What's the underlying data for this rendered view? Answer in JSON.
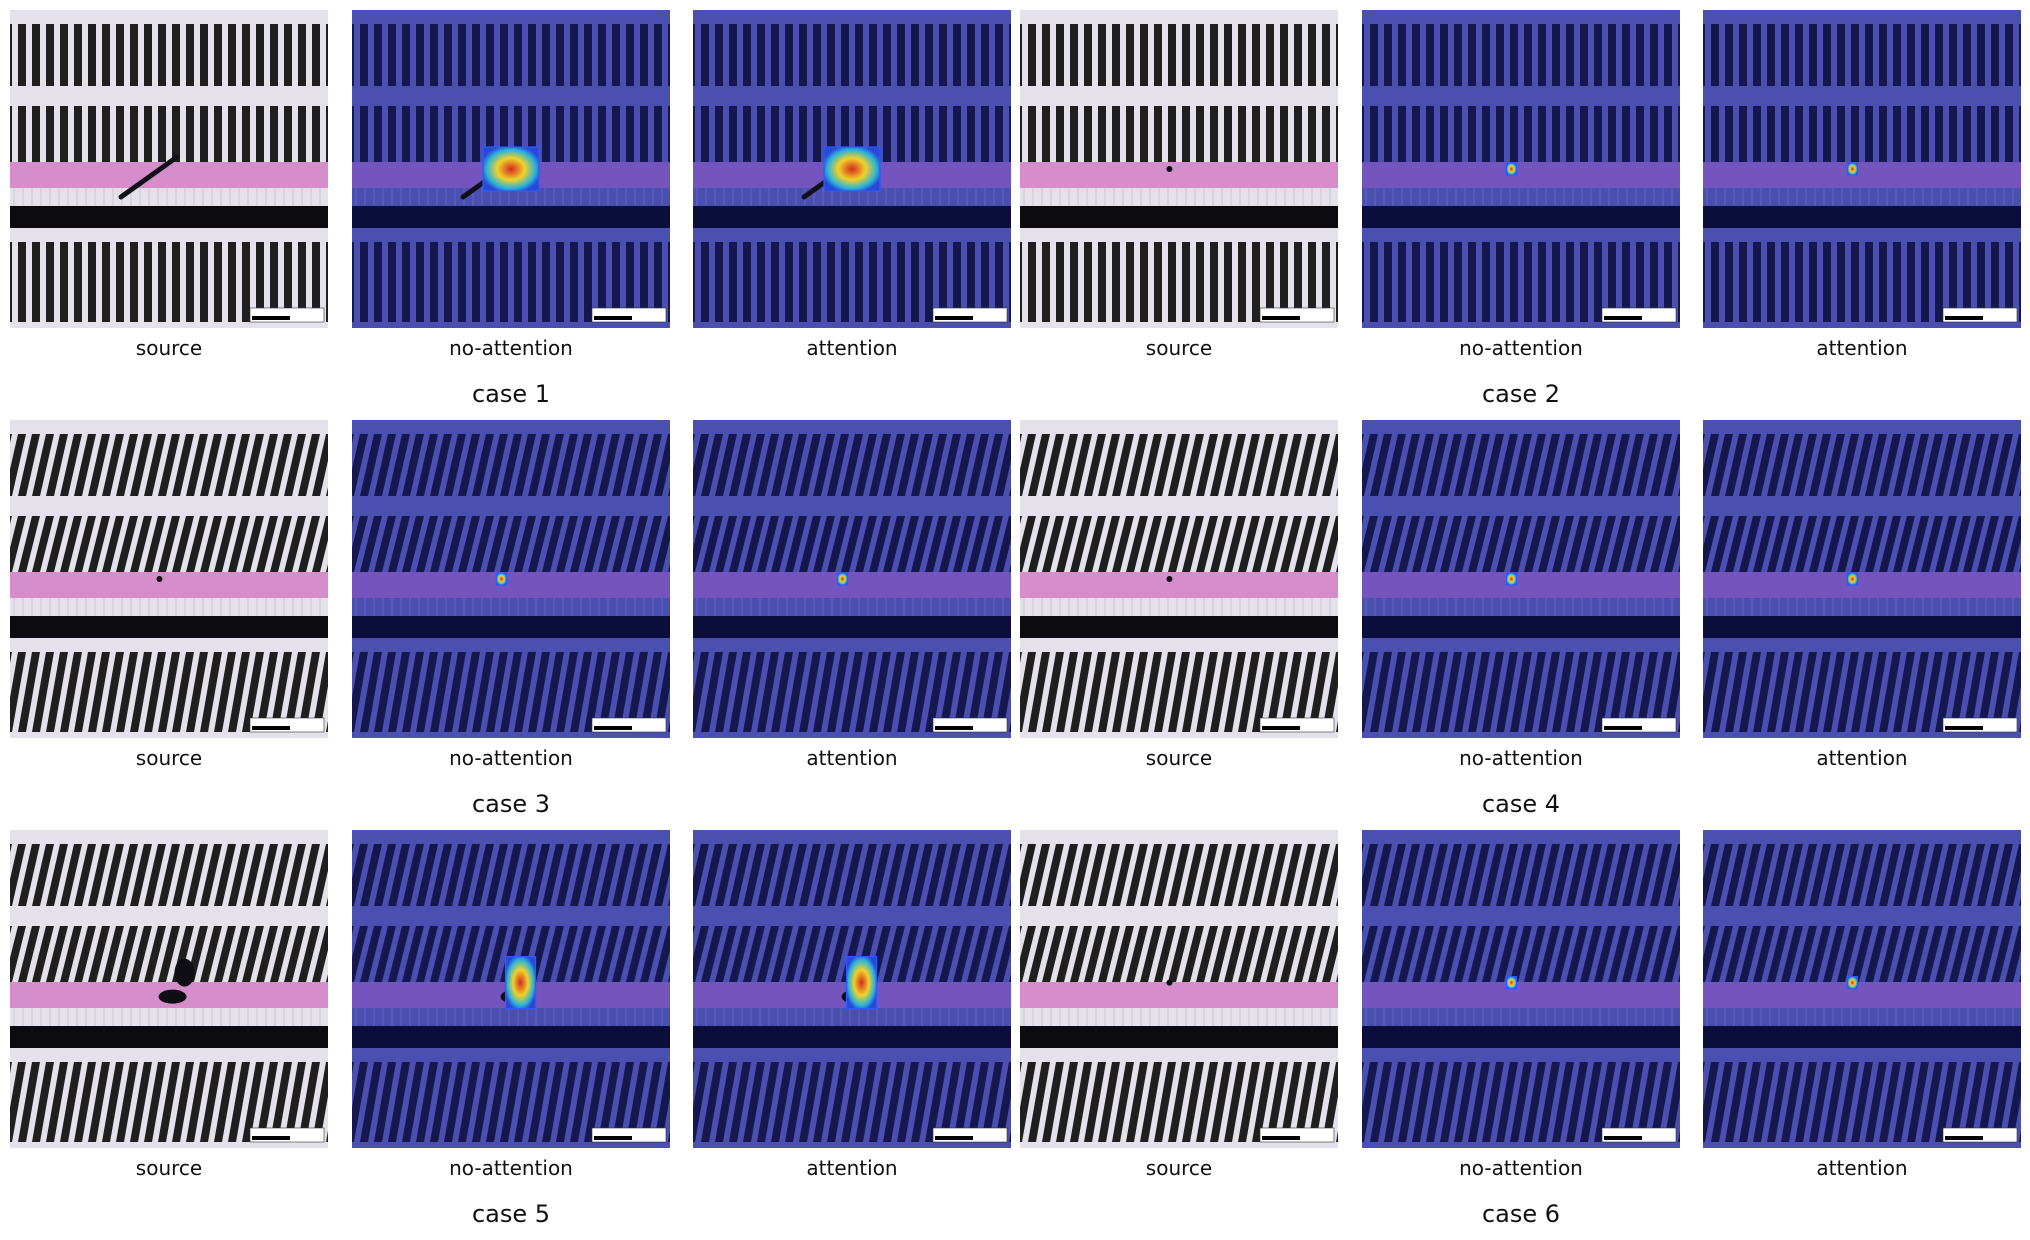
{
  "colors": {
    "source_background": "#e4e1ea",
    "source_finger": "#1f1f1f",
    "source_pink": "#d27ec6",
    "overlay_background": "#4a4fb0",
    "overlay_finger": "#15184e",
    "overlay_dark_band": "#0b0d3a",
    "heat_core": "#d42a1e",
    "heat_mid": "#f0d22a",
    "heat_edge": "#2ab3d8"
  },
  "panel_kinds": [
    "source",
    "no-attention",
    "attention"
  ],
  "cases": [
    {
      "title": "case 1",
      "panels": [
        {
          "type": "source",
          "label": "source",
          "defect": "scratch",
          "heat": null
        },
        {
          "type": "overlay",
          "label": "no-attention",
          "defect": "scratch",
          "heat": "large"
        },
        {
          "type": "overlay",
          "label": "attention",
          "defect": "scratch",
          "heat": "large"
        }
      ]
    },
    {
      "title": "case 2",
      "panels": [
        {
          "type": "source",
          "label": "source",
          "defect": "speck",
          "heat": null
        },
        {
          "type": "overlay",
          "label": "no-attention",
          "defect": "speck",
          "heat": "small"
        },
        {
          "type": "overlay",
          "label": "attention",
          "defect": "speck",
          "heat": "small"
        }
      ]
    },
    {
      "title": "case 3",
      "panels": [
        {
          "type": "source",
          "label": "source",
          "defect": "speck",
          "heat": null
        },
        {
          "type": "overlay",
          "label": "no-attention",
          "defect": "speck",
          "heat": "small"
        },
        {
          "type": "overlay",
          "label": "attention",
          "defect": "speck",
          "heat": "small"
        }
      ]
    },
    {
      "title": "case 4",
      "panels": [
        {
          "type": "source",
          "label": "source",
          "defect": "speck",
          "heat": null
        },
        {
          "type": "overlay",
          "label": "no-attention",
          "defect": "speck",
          "heat": "small"
        },
        {
          "type": "overlay",
          "label": "attention",
          "defect": "speck",
          "heat": "small"
        }
      ]
    },
    {
      "title": "case 5",
      "panels": [
        {
          "type": "source",
          "label": "source",
          "defect": "blob",
          "heat": null
        },
        {
          "type": "overlay",
          "label": "no-attention",
          "defect": "blob",
          "heat": "tall"
        },
        {
          "type": "overlay",
          "label": "attention",
          "defect": "blob",
          "heat": "tall"
        }
      ]
    },
    {
      "title": "case 6",
      "panels": [
        {
          "type": "source",
          "label": "source",
          "defect": "speck",
          "heat": null
        },
        {
          "type": "overlay",
          "label": "no-attention",
          "defect": "speck",
          "heat": "small"
        },
        {
          "type": "overlay",
          "label": "attention",
          "defect": "speck",
          "heat": "small"
        }
      ]
    }
  ]
}
